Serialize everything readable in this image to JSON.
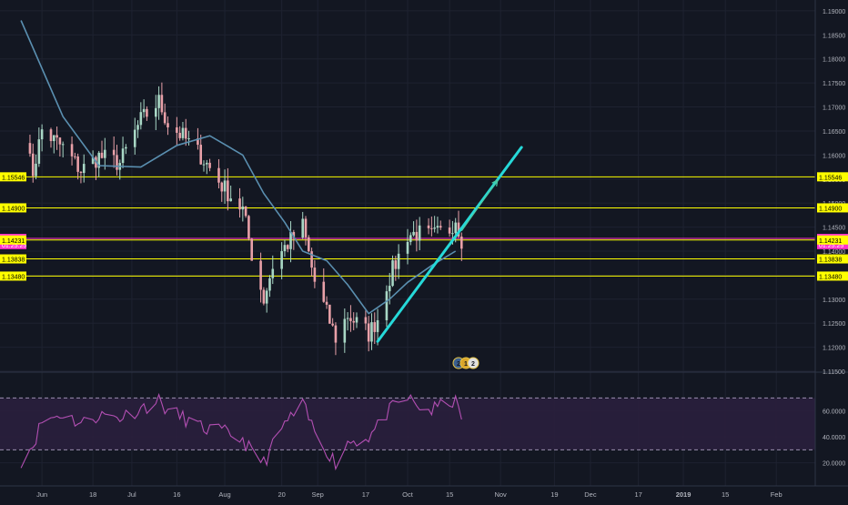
{
  "colors": {
    "background": "#131722",
    "grid": "#1e2230",
    "axis_text": "#b2b5be",
    "candle_up": "#a8d7c5",
    "candle_down": "#e8a0a8",
    "moving_average": "#5a8fb0",
    "support_resistance": "#ffff00",
    "current_price": "#ff33cc",
    "trendline": "#26d9d9",
    "projection_arrow": "#4cc9a0",
    "rsi_line": "#b34fb3",
    "rsi_band": "#2a1f3d",
    "rsi_band_edge": "#9c8fb0"
  },
  "chart_data": [
    {
      "type": "candlestick",
      "instrument_timeframe": "daily",
      "x_tick_labels": [
        "Jun",
        "18",
        "Jul",
        "16",
        "Aug",
        "20",
        "Sep",
        "17",
        "Oct",
        "15",
        "Nov",
        "19",
        "Dec",
        "17",
        "2019",
        "15",
        "Feb"
      ],
      "y_tick_labels": [
        "1.19000",
        "1.18500",
        "1.18000",
        "1.17500",
        "1.17000",
        "1.16500",
        "1.16000",
        "1.15500",
        "1.15000",
        "1.14500",
        "1.14000",
        "1.13500",
        "1.13000",
        "1.12500",
        "1.12000",
        "1.11500"
      ],
      "ylim": [
        1.115,
        1.1915
      ],
      "grid": true,
      "series": [
        {
          "kind": "close",
          "dates": [
            "2018-05-25",
            "2018-05-29",
            "2018-06-01",
            "2018-06-08",
            "2018-06-14",
            "2018-06-20",
            "2018-06-27",
            "2018-07-04",
            "2018-07-10",
            "2018-07-13",
            "2018-07-18",
            "2018-07-24",
            "2018-07-31",
            "2018-08-07",
            "2018-08-10",
            "2018-08-14",
            "2018-08-17",
            "2018-08-21",
            "2018-08-27",
            "2018-08-31",
            "2018-09-04",
            "2018-09-07",
            "2018-09-11",
            "2018-09-18",
            "2018-09-21",
            "2018-09-24",
            "2018-09-28",
            "2018-10-01",
            "2018-10-04",
            "2018-10-09",
            "2018-10-15",
            "2018-10-17",
            "2018-10-19"
          ],
          "values": [
            1.1646,
            1.1565,
            1.1652,
            1.1615,
            1.1568,
            1.1597,
            1.1583,
            1.1672,
            1.1711,
            1.1666,
            1.1638,
            1.1599,
            1.1537,
            1.1486,
            1.1394,
            1.13,
            1.137,
            1.1408,
            1.1452,
            1.1336,
            1.127,
            1.122,
            1.1267,
            1.1228,
            1.126,
            1.1331,
            1.1389,
            1.1434,
            1.1437,
            1.143,
            1.1446,
            1.147,
            1.1426
          ]
        },
        {
          "kind": "moving_average",
          "dates": [
            "2018-05-25",
            "2018-06-08",
            "2018-06-20",
            "2018-07-04",
            "2018-07-16",
            "2018-07-27",
            "2018-08-07",
            "2018-08-14",
            "2018-08-21",
            "2018-08-27",
            "2018-09-04",
            "2018-09-11",
            "2018-09-18",
            "2018-09-25",
            "2018-10-01",
            "2018-10-09",
            "2018-10-17"
          ],
          "values": [
            1.188,
            1.168,
            1.1578,
            1.1575,
            1.162,
            1.164,
            1.16,
            1.152,
            1.146,
            1.14,
            1.138,
            1.133,
            1.127,
            1.13,
            1.1335,
            1.137,
            1.14
          ]
        }
      ],
      "horizontal_levels": [
        {
          "label": "1.15546",
          "value": 1.15546,
          "style": "support_resistance"
        },
        {
          "label": "1.14900",
          "value": 1.149,
          "style": "support_resistance"
        },
        {
          "label": "1.14264",
          "value": 1.14264,
          "style": "current_price"
        },
        {
          "label": "01:25:25",
          "value": 1.14135,
          "style": "countdown"
        },
        {
          "label": "1.14231",
          "value": 1.14231,
          "style": "support_resistance"
        },
        {
          "label": "1.13838",
          "value": 1.13838,
          "style": "support_resistance"
        },
        {
          "label": "1.13480",
          "value": 1.1348,
          "style": "support_resistance"
        }
      ],
      "drawings": [
        {
          "kind": "trendline",
          "from": {
            "date": "2018-09-21",
            "price": 1.1212
          },
          "to": {
            "date": "2018-11-08",
            "price": 1.1616
          }
        },
        {
          "kind": "arrow",
          "from": {
            "date": "2018-10-19",
            "price": 1.1442
          },
          "to": {
            "date": "2018-10-31",
            "price": 1.1548
          }
        }
      ],
      "event_markers": [
        "2",
        "1",
        "2"
      ]
    },
    {
      "type": "line",
      "indicator": "RSI",
      "y_tick_labels": [
        "60.0000",
        "40.0000",
        "20.0000"
      ],
      "ylim": [
        12,
        78
      ],
      "band": [
        30,
        70
      ],
      "dates": [
        "2018-05-25",
        "2018-05-29",
        "2018-06-01",
        "2018-06-08",
        "2018-06-14",
        "2018-06-20",
        "2018-06-27",
        "2018-07-04",
        "2018-07-10",
        "2018-07-13",
        "2018-07-18",
        "2018-07-24",
        "2018-07-31",
        "2018-08-07",
        "2018-08-10",
        "2018-08-14",
        "2018-08-17",
        "2018-08-21",
        "2018-08-27",
        "2018-08-31",
        "2018-09-04",
        "2018-09-07",
        "2018-09-11",
        "2018-09-18",
        "2018-09-21",
        "2018-09-24",
        "2018-09-28",
        "2018-10-01",
        "2018-10-04",
        "2018-10-09",
        "2018-10-15",
        "2018-10-17",
        "2018-10-19"
      ],
      "values": [
        22,
        34,
        52,
        58,
        50,
        57,
        55,
        62,
        68,
        60,
        55,
        47,
        44,
        38,
        28,
        20,
        33,
        50,
        64,
        44,
        30,
        20,
        36,
        40,
        48,
        58,
        66,
        70,
        64,
        60,
        68,
        66,
        56
      ]
    }
  ]
}
